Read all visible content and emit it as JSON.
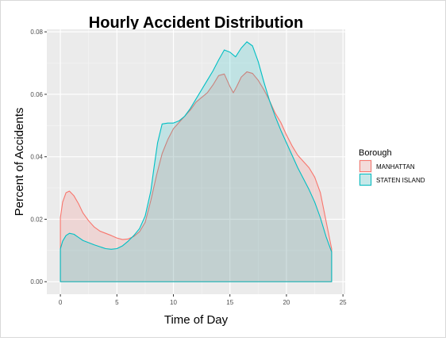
{
  "chart_data": {
    "type": "area",
    "title": "Hourly Accident Distribution",
    "xlabel": "Time of Day",
    "ylabel": "Percent of Accidents",
    "xlim": [
      -1.2,
      25.2
    ],
    "ylim": [
      -0.004,
      0.0808
    ],
    "x_ticks": [
      0,
      5,
      10,
      15,
      20,
      25
    ],
    "y_ticks": [
      0.0,
      0.02,
      0.04,
      0.06,
      0.08
    ],
    "x_tick_labels": [
      "0",
      "5",
      "10",
      "15",
      "20",
      "25"
    ],
    "y_tick_labels": [
      "0.00",
      "0.02",
      "0.04",
      "0.06",
      "0.08"
    ],
    "grid": true,
    "legend": {
      "title": "Borough",
      "position": "right"
    },
    "series": [
      {
        "name": "MANHATTAN",
        "color": "#f8766d",
        "fill": "#f4cccb",
        "x": [
          0,
          0.2,
          0.5,
          0.8,
          1.2,
          1.6,
          2.0,
          2.5,
          3.0,
          3.5,
          4.0,
          4.5,
          5.0,
          5.5,
          6.0,
          6.5,
          7.0,
          7.5,
          8.0,
          8.5,
          9.0,
          9.5,
          10.0,
          10.5,
          11.0,
          11.5,
          12.0,
          12.5,
          13.0,
          13.5,
          14.0,
          14.5,
          15.0,
          15.3,
          15.6,
          16.0,
          16.5,
          17.0,
          17.5,
          18.0,
          18.5,
          19.0,
          19.5,
          20.0,
          20.5,
          21.0,
          21.5,
          22.0,
          22.5,
          23.0,
          23.5,
          24.0
        ],
        "y": [
          0.0205,
          0.0255,
          0.0285,
          0.029,
          0.0275,
          0.025,
          0.022,
          0.0195,
          0.0175,
          0.0162,
          0.0155,
          0.0148,
          0.014,
          0.0135,
          0.0137,
          0.0145,
          0.016,
          0.019,
          0.026,
          0.034,
          0.041,
          0.0455,
          0.049,
          0.051,
          0.053,
          0.055,
          0.0575,
          0.059,
          0.0605,
          0.063,
          0.066,
          0.0665,
          0.0625,
          0.0605,
          0.0625,
          0.0655,
          0.0672,
          0.0667,
          0.0645,
          0.0615,
          0.058,
          0.054,
          0.051,
          0.047,
          0.0435,
          0.0405,
          0.0385,
          0.0365,
          0.0335,
          0.0285,
          0.0195,
          0.0105
        ]
      },
      {
        "name": "STATEN ISLAND",
        "color": "#00bfc4",
        "fill": "#c5e6e3",
        "x": [
          0,
          0.2,
          0.5,
          0.8,
          1.2,
          1.6,
          2.0,
          2.5,
          3.0,
          3.5,
          4.0,
          4.5,
          5.0,
          5.5,
          6.0,
          6.5,
          7.0,
          7.5,
          8.0,
          8.3,
          8.6,
          9.0,
          9.5,
          10.0,
          10.5,
          11.0,
          11.5,
          12.0,
          12.5,
          13.0,
          13.5,
          14.0,
          14.5,
          15.0,
          15.5,
          16.0,
          16.5,
          17.0,
          17.5,
          18.0,
          18.5,
          19.0,
          19.5,
          20.0,
          20.5,
          21.0,
          21.5,
          22.0,
          22.5,
          23.0,
          23.5,
          24.0
        ],
        "y": [
          0.0105,
          0.013,
          0.0148,
          0.0155,
          0.0152,
          0.0142,
          0.0132,
          0.0125,
          0.0118,
          0.0112,
          0.0106,
          0.0104,
          0.0106,
          0.0115,
          0.013,
          0.0148,
          0.017,
          0.021,
          0.029,
          0.037,
          0.0445,
          0.0505,
          0.0508,
          0.0508,
          0.0515,
          0.053,
          0.0555,
          0.0585,
          0.0615,
          0.0645,
          0.0675,
          0.071,
          0.0742,
          0.0735,
          0.072,
          0.0748,
          0.0768,
          0.0755,
          0.0705,
          0.064,
          0.058,
          0.053,
          0.0485,
          0.0445,
          0.0405,
          0.0365,
          0.033,
          0.0295,
          0.0255,
          0.0205,
          0.0145,
          0.0095
        ]
      }
    ]
  }
}
